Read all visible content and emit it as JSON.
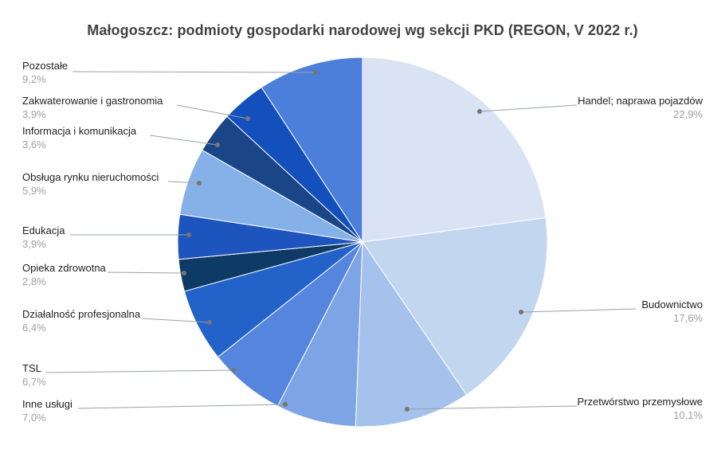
{
  "title": "Małogoszcz: podmioty gospodarki narodowej wg sekcji PKD (REGON, V 2022 r.)",
  "chart_data": {
    "type": "pie",
    "title": "Małogoszcz: podmioty gospodarki narodowej wg sekcji PKD (REGON, V 2022 r.)",
    "unit": "%",
    "start_angle_deg": 0,
    "direction": "clockwise",
    "legend": "outside-callout-labels",
    "labels": [
      "Handel; naprawa pojazdów",
      "Budownictwo",
      "Przetwórstwo przemysłowe",
      "Inne usługi",
      "TSL",
      "Działalność profesjonalna",
      "Opieka zdrowotna",
      "Edukacja",
      "Obsługa rynku nieruchomości",
      "Informacja i komunikacja",
      "Zakwaterowanie i gastronomia",
      "Pozostałe"
    ],
    "values": [
      22.9,
      17.6,
      10.1,
      7.0,
      6.7,
      6.4,
      2.8,
      3.9,
      5.9,
      3.6,
      3.9,
      9.2
    ],
    "percent_labels": [
      "22,9%",
      "17,6%",
      "10,1%",
      "7,0%",
      "6,7%",
      "6,4%",
      "2,8%",
      "3,9%",
      "5,9%",
      "3,6%",
      "3,9%",
      "9,2%"
    ],
    "colors": [
      "#dae3f3",
      "#c3d6f0",
      "#a4c2ec",
      "#7da4e4",
      "#5585dd",
      "#2262c9",
      "#0e3a66",
      "#1d54bd",
      "#85b1e8",
      "#1a4587",
      "#1450bc",
      "#4c7fd9"
    ]
  },
  "styles": {
    "title_color": "#424242",
    "label_color": "#202124",
    "percent_color": "#9e9e9e",
    "leader_line_color": "#9aa0a6",
    "dot_color": "#757575",
    "slice_stroke": "#ffffff",
    "background": "#ffffff"
  }
}
